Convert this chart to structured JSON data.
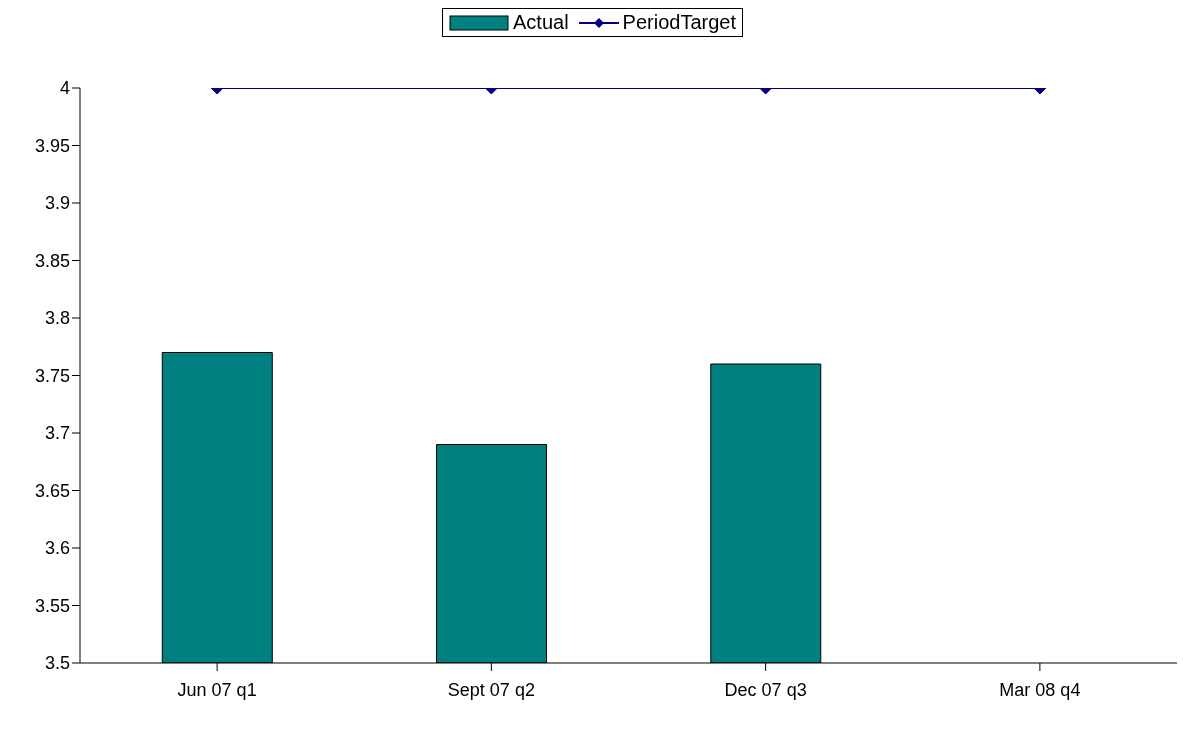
{
  "chart_data": {
    "type": "bar",
    "categories": [
      "Jun 07 q1",
      "Sept 07 q2",
      "Dec 07 q3",
      "Mar 08 q4"
    ],
    "series": [
      {
        "name": "Actual",
        "color": "#008080",
        "values": [
          3.77,
          3.69,
          3.76,
          null
        ]
      },
      {
        "name": "PeriodTarget",
        "type": "line",
        "color": "#000080",
        "values": [
          4,
          4,
          4,
          4
        ],
        "marker": "diamond"
      }
    ],
    "ylim": [
      3.5,
      4
    ],
    "yticks": [
      3.5,
      3.55,
      3.6,
      3.65,
      3.7,
      3.75,
      3.8,
      3.85,
      3.9,
      3.95,
      4
    ],
    "grid": false,
    "legend": "top"
  }
}
